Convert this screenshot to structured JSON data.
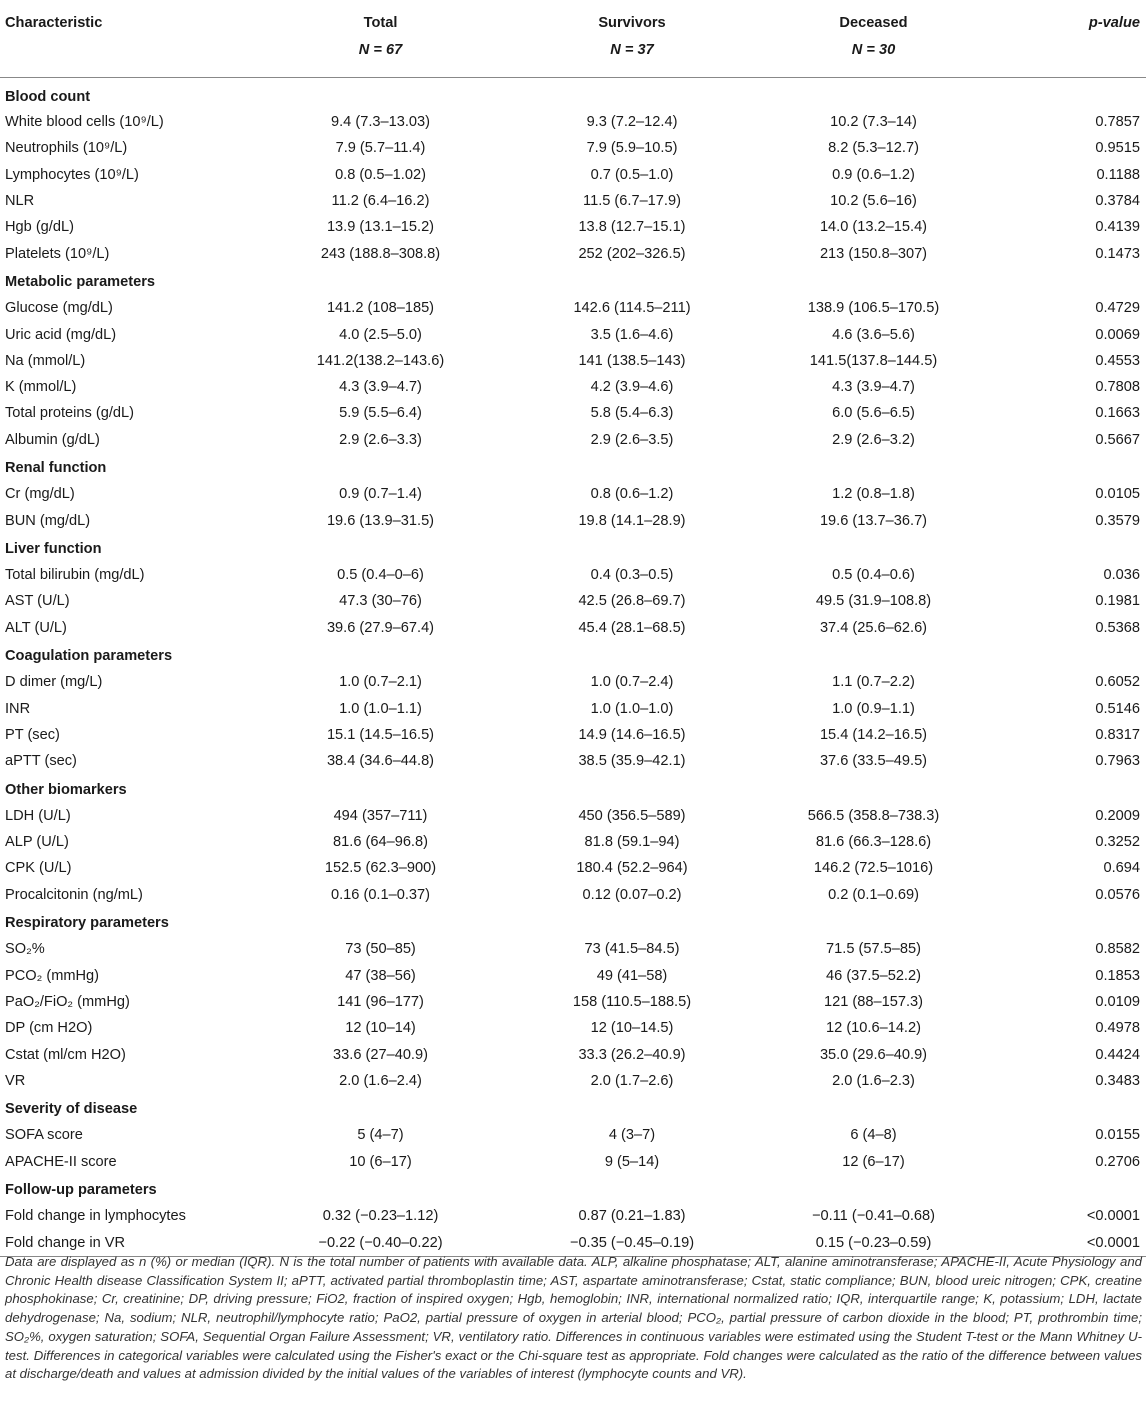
{
  "header": {
    "characteristic": "Characteristic",
    "total_label": "Total",
    "total_n": "N = 67",
    "survivors_label": "Survivors",
    "survivors_n": "N = 37",
    "deceased_label": "Deceased",
    "deceased_n": "N = 30",
    "pvalue_label": "p-value"
  },
  "sections": [
    {
      "title": "Blood count",
      "rows": [
        {
          "label": "White blood cells (10⁹/L)",
          "total": "9.4 (7.3–13.03)",
          "survivors": "9.3 (7.2–12.4)",
          "deceased": "10.2 (7.3–14)",
          "p": "0.7857"
        },
        {
          "label": "Neutrophils (10⁹/L)",
          "total": "7.9 (5.7–11.4)",
          "survivors": "7.9 (5.9–10.5)",
          "deceased": "8.2 (5.3–12.7)",
          "p": "0.9515"
        },
        {
          "label": "Lymphocytes (10⁹/L)",
          "total": "0.8 (0.5–1.02)",
          "survivors": "0.7 (0.5–1.0)",
          "deceased": "0.9 (0.6–1.2)",
          "p": "0.1188"
        },
        {
          "label": "NLR",
          "total": "11.2 (6.4–16.2)",
          "survivors": "11.5 (6.7–17.9)",
          "deceased": "10.2 (5.6–16)",
          "p": "0.3784"
        },
        {
          "label": "Hgb (g/dL)",
          "total": "13.9 (13.1–15.2)",
          "survivors": "13.8 (12.7–15.1)",
          "deceased": "14.0 (13.2–15.4)",
          "p": "0.4139"
        },
        {
          "label": "Platelets (10⁹/L)",
          "total": "243 (188.8–308.8)",
          "survivors": "252 (202–326.5)",
          "deceased": "213 (150.8–307)",
          "p": "0.1473"
        }
      ]
    },
    {
      "title": "Metabolic parameters",
      "rows": [
        {
          "label": "Glucose (mg/dL)",
          "total": "141.2 (108–185)",
          "survivors": "142.6 (114.5–211)",
          "deceased": "138.9 (106.5–170.5)",
          "p": "0.4729"
        },
        {
          "label": "Uric acid (mg/dL)",
          "total": "4.0 (2.5–5.0)",
          "survivors": "3.5 (1.6–4.6)",
          "deceased": "4.6 (3.6–5.6)",
          "p": "0.0069"
        },
        {
          "label": "Na (mmol/L)",
          "total": "141.2(138.2–143.6)",
          "survivors": "141 (138.5–143)",
          "deceased": "141.5(137.8–144.5)",
          "p": "0.4553"
        },
        {
          "label": "K (mmol/L)",
          "total": "4.3 (3.9–4.7)",
          "survivors": "4.2 (3.9–4.6)",
          "deceased": "4.3 (3.9–4.7)",
          "p": "0.7808"
        },
        {
          "label": "Total proteins (g/dL)",
          "total": "5.9 (5.5–6.4)",
          "survivors": "5.8 (5.4–6.3)",
          "deceased": "6.0 (5.6–6.5)",
          "p": "0.1663"
        },
        {
          "label": "Albumin (g/dL)",
          "total": "2.9 (2.6–3.3)",
          "survivors": "2.9 (2.6–3.5)",
          "deceased": "2.9 (2.6–3.2)",
          "p": "0.5667"
        }
      ]
    },
    {
      "title": "Renal function",
      "rows": [
        {
          "label": "Cr (mg/dL)",
          "total": "0.9 (0.7–1.4)",
          "survivors": "0.8 (0.6–1.2)",
          "deceased": "1.2 (0.8–1.8)",
          "p": "0.0105"
        },
        {
          "label": "BUN (mg/dL)",
          "total": "19.6 (13.9–31.5)",
          "survivors": "19.8 (14.1–28.9)",
          "deceased": "19.6 (13.7–36.7)",
          "p": "0.3579"
        }
      ]
    },
    {
      "title": "Liver function",
      "rows": [
        {
          "label": "Total bilirubin (mg/dL)",
          "total": "0.5 (0.4–0–6)",
          "survivors": "0.4 (0.3–0.5)",
          "deceased": "0.5 (0.4–0.6)",
          "p": "0.036"
        },
        {
          "label": "AST (U/L)",
          "total": "47.3 (30–76)",
          "survivors": "42.5 (26.8–69.7)",
          "deceased": "49.5 (31.9–108.8)",
          "p": "0.1981"
        },
        {
          "label": "ALT (U/L)",
          "total": "39.6 (27.9–67.4)",
          "survivors": "45.4 (28.1–68.5)",
          "deceased": "37.4 (25.6–62.6)",
          "p": "0.5368"
        }
      ]
    },
    {
      "title": "Coagulation parameters",
      "rows": [
        {
          "label": "D dimer (mg/L)",
          "total": "1.0 (0.7–2.1)",
          "survivors": "1.0 (0.7–2.4)",
          "deceased": "1.1 (0.7–2.2)",
          "p": "0.6052"
        },
        {
          "label": "INR",
          "total": "1.0 (1.0–1.1)",
          "survivors": "1.0 (1.0–1.0)",
          "deceased": "1.0 (0.9–1.1)",
          "p": "0.5146"
        },
        {
          "label": "PT (sec)",
          "total": "15.1 (14.5–16.5)",
          "survivors": "14.9 (14.6–16.5)",
          "deceased": "15.4 (14.2–16.5)",
          "p": "0.8317"
        },
        {
          "label": "aPTT (sec)",
          "total": "38.4 (34.6–44.8)",
          "survivors": "38.5 (35.9–42.1)",
          "deceased": "37.6 (33.5–49.5)",
          "p": "0.7963"
        }
      ]
    },
    {
      "title": "Other biomarkers",
      "rows": [
        {
          "label": "LDH (U/L)",
          "total": "494 (357–711)",
          "survivors": "450 (356.5–589)",
          "deceased": "566.5 (358.8–738.3)",
          "p": "0.2009"
        },
        {
          "label": "ALP (U/L)",
          "total": "81.6 (64–96.8)",
          "survivors": "81.8 (59.1–94)",
          "deceased": "81.6 (66.3–128.6)",
          "p": "0.3252"
        },
        {
          "label": "CPK (U/L)",
          "total": "152.5 (62.3–900)",
          "survivors": "180.4 (52.2–964)",
          "deceased": "146.2 (72.5–1016)",
          "p": "0.694"
        },
        {
          "label": "Procalcitonin (ng/mL)",
          "total": "0.16 (0.1–0.37)",
          "survivors": "0.12 (0.07–0.2)",
          "deceased": "0.2 (0.1–0.69)",
          "p": "0.0576"
        }
      ]
    },
    {
      "title": "Respiratory parameters",
      "rows": [
        {
          "label": "SO₂%",
          "total": "73 (50–85)",
          "survivors": "73 (41.5–84.5)",
          "deceased": "71.5 (57.5–85)",
          "p": "0.8582"
        },
        {
          "label": "PCO₂ (mmHg)",
          "total": "47 (38–56)",
          "survivors": "49 (41–58)",
          "deceased": "46 (37.5–52.2)",
          "p": "0.1853"
        },
        {
          "label": "PaO₂/FiO₂ (mmHg)",
          "total": "141 (96–177)",
          "survivors": "158 (110.5–188.5)",
          "deceased": "121 (88–157.3)",
          "p": "0.0109"
        },
        {
          "label": "DP (cm H2O)",
          "total": "12 (10–14)",
          "survivors": "12 (10–14.5)",
          "deceased": "12 (10.6–14.2)",
          "p": "0.4978"
        },
        {
          "label": "Cstat (ml/cm H2O)",
          "total": "33.6 (27–40.9)",
          "survivors": "33.3 (26.2–40.9)",
          "deceased": "35.0 (29.6–40.9)",
          "p": "0.4424"
        },
        {
          "label": "VR",
          "total": "2.0 (1.6–2.4)",
          "survivors": "2.0 (1.7–2.6)",
          "deceased": "2.0 (1.6–2.3)",
          "p": "0.3483"
        }
      ]
    },
    {
      "title": "Severity of disease",
      "rows": [
        {
          "label": "SOFA score",
          "total": "5 (4–7)",
          "survivors": "4 (3–7)",
          "deceased": "6 (4–8)",
          "p": "0.0155"
        },
        {
          "label": "APACHE-II score",
          "total": "10 (6–17)",
          "survivors": "9 (5–14)",
          "deceased": "12 (6–17)",
          "p": "0.2706"
        }
      ]
    },
    {
      "title": "Follow-up parameters",
      "rows": [
        {
          "label": "Fold change in lymphocytes",
          "total": "0.32 (−0.23–1.12)",
          "survivors": "0.87 (0.21–1.83)",
          "deceased": "−0.11 (−0.41–0.68)",
          "p": "<0.0001"
        },
        {
          "label": "Fold change in VR",
          "total": "−0.22 (−0.40–0.22)",
          "survivors": "−0.35 (−0.45–0.19)",
          "deceased": "0.15 (−0.23–0.59)",
          "p": "<0.0001"
        }
      ]
    }
  ],
  "footnote": "Data are displayed as n (%) or median (IQR). N is the total number of patients with available data. ALP, alkaline phosphatase; ALT, alanine aminotransferase; APACHE-II, Acute Physiology and Chronic Health disease Classification System II; aPTT, activated partial thromboplastin time; AST, aspartate aminotransferase; Cstat, static compliance; BUN, blood ureic nitrogen; CPK, creatine phosphokinase; Cr, creatinine; DP, driving pressure; FiO2, fraction of inspired oxygen; Hgb, hemoglobin; INR, international normalized ratio; IQR, interquartile range; K, potassium; LDH, lactate dehydrogenase; Na, sodium; NLR, neutrophil/lymphocyte ratio; PaO2, partial pressure of oxygen in arterial blood; PCO₂, partial pressure of carbon dioxide in the blood; PT, prothrombin time; SO₂%, oxygen saturation; SOFA, Sequential Organ Failure Assessment; VR, ventilatory ratio. Differences in continuous variables were estimated using the Student T-test or the Mann Whitney U-test. Differences in categorical variables were calculated using the Fisher's exact or the Chi-square test as appropriate. Fold changes were calculated as the ratio of the difference between values at discharge/death and values at admission divided by the initial values of the variables of interest (lymphocyte counts and VR)."
}
